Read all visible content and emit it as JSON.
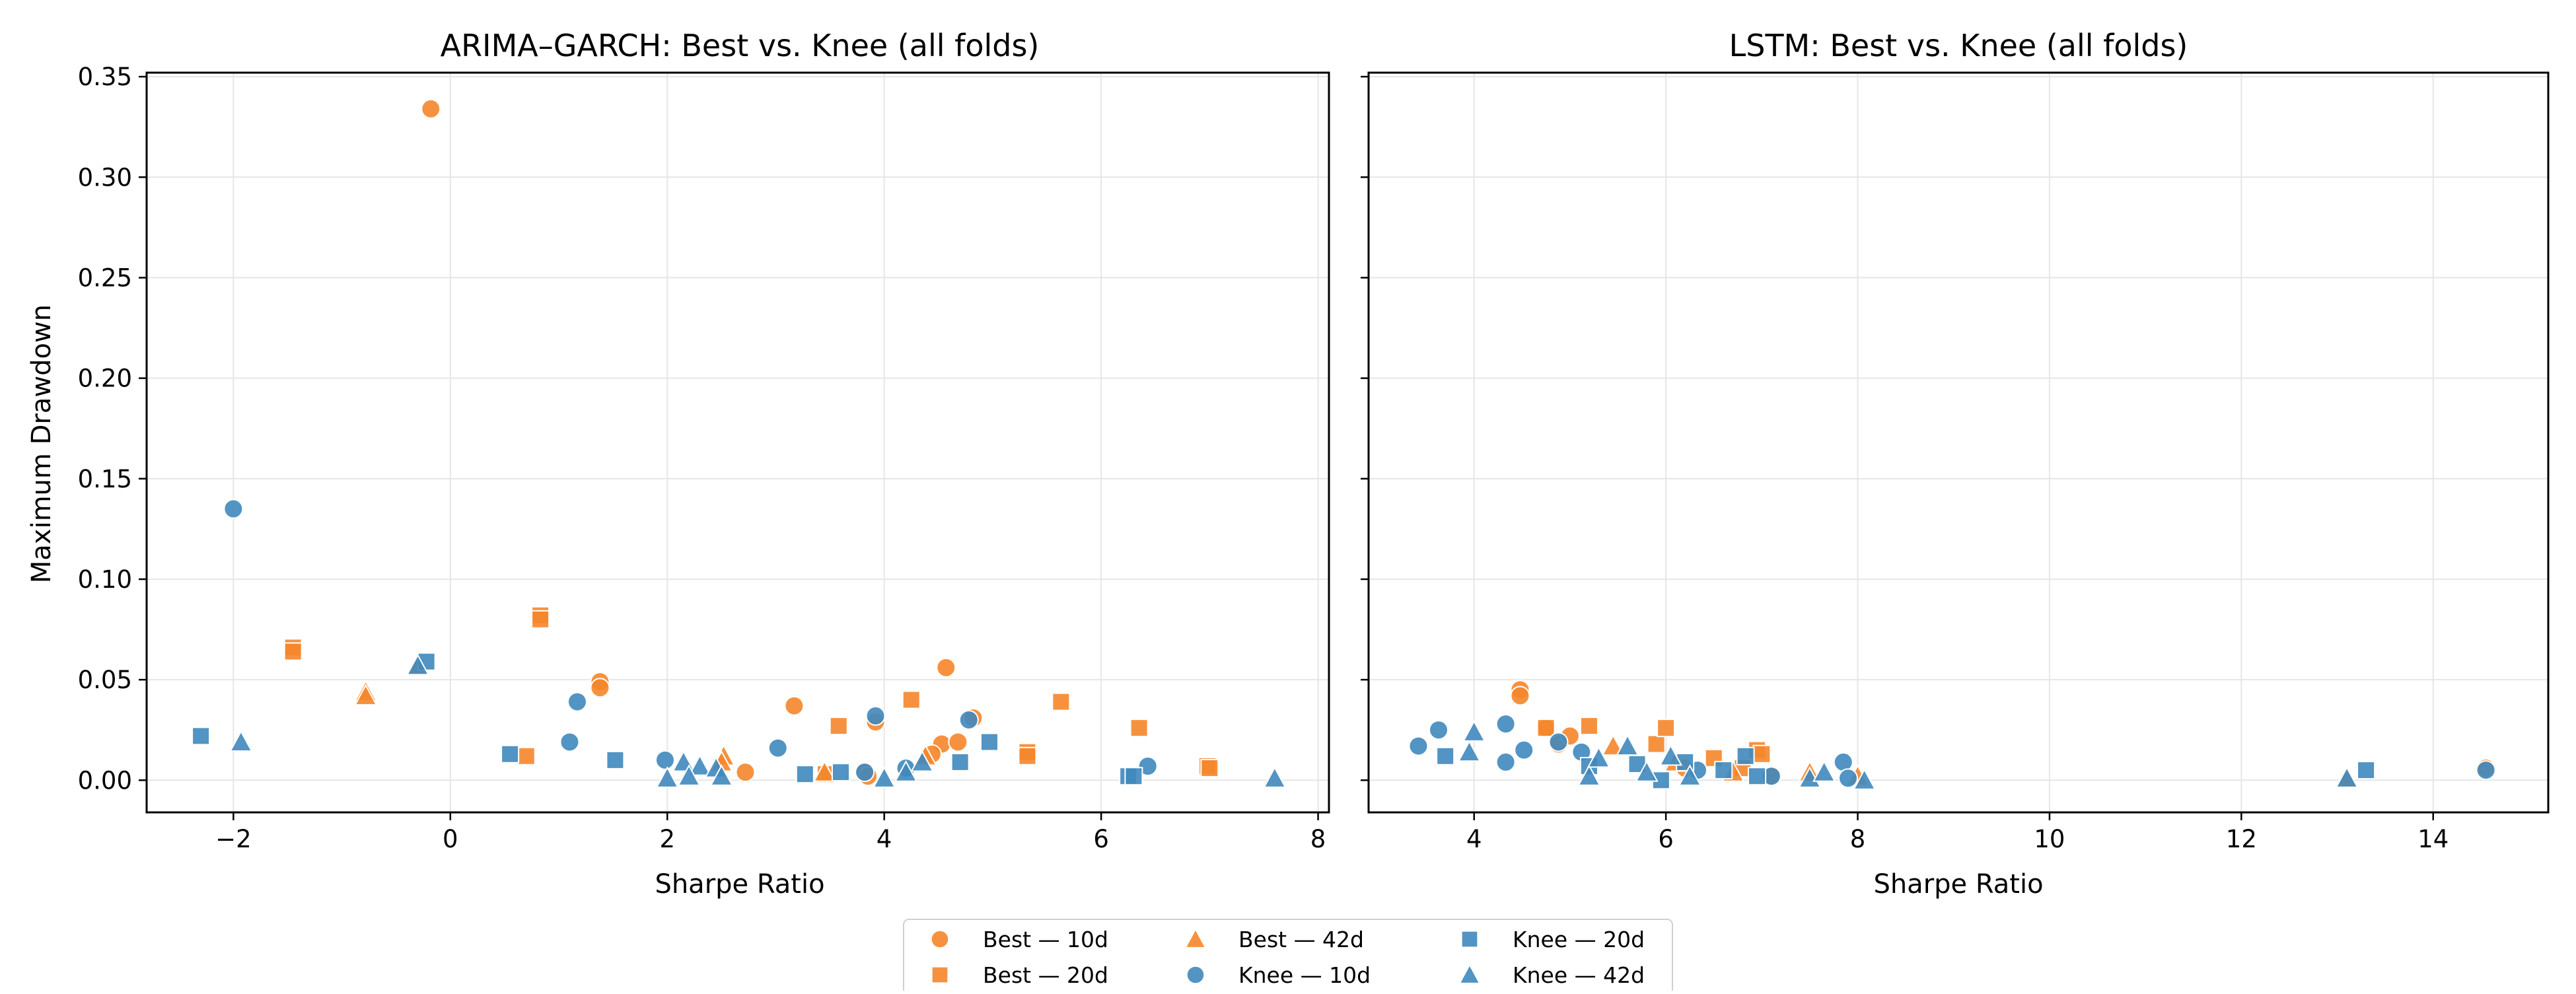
{
  "colors": {
    "best": "#f5862a",
    "knee": "#3f88bd",
    "overlap": "#516e80",
    "grid": "#e6e6e6",
    "axis": "#000000"
  },
  "marker_shapes": {
    "10d": "circle",
    "20d": "square",
    "42d": "triangle"
  },
  "shared": {
    "ylabel": "Maximum Drawdown"
  },
  "legend": {
    "placement": "bottom-center",
    "entries": [
      {
        "label": "Best — 10d",
        "group": "best",
        "marker": "circle"
      },
      {
        "label": "Best — 20d",
        "group": "best",
        "marker": "square"
      },
      {
        "label": "Best — 42d",
        "group": "best",
        "marker": "triangle"
      },
      {
        "label": "Knee — 10d",
        "group": "knee",
        "marker": "circle"
      },
      {
        "label": "Knee — 20d",
        "group": "knee",
        "marker": "square"
      },
      {
        "label": "Knee — 42d",
        "group": "knee",
        "marker": "triangle"
      }
    ]
  },
  "chart_data": [
    {
      "type": "scatter",
      "title": "ARIMA–GARCH: Best vs. Knee (all folds)",
      "xlabel": "Sharpe Ratio",
      "ylabel": "Maximum Drawdown",
      "xlim": [
        -2.8,
        8.1
      ],
      "ylim": [
        -0.016,
        0.352
      ],
      "xticks": [
        -2,
        0,
        2,
        4,
        6,
        8
      ],
      "yticks": [
        0.0,
        0.05,
        0.1,
        0.15,
        0.2,
        0.25,
        0.3,
        0.35
      ],
      "ytick_labels": [
        "0.00",
        "0.05",
        "0.10",
        "0.15",
        "0.20",
        "0.25",
        "0.30",
        "0.35"
      ],
      "xtick_labels": [
        "−2",
        "0",
        "2",
        "4",
        "6",
        "8"
      ],
      "grid": true,
      "series": [
        {
          "name": "Best — 10d",
          "group": "best",
          "marker": "circle",
          "points": [
            [
              -0.18,
              0.334
            ],
            [
              1.38,
              0.049
            ],
            [
              1.38,
              0.046
            ],
            [
              3.17,
              0.037
            ],
            [
              2.72,
              0.004
            ],
            [
              3.92,
              0.029
            ],
            [
              3.82,
              0.004
            ],
            [
              4.57,
              0.056
            ],
            [
              4.53,
              0.018
            ],
            [
              4.68,
              0.019
            ],
            [
              4.82,
              0.031
            ],
            [
              4.44,
              0.013
            ],
            [
              3.85,
              0.002
            ]
          ]
        },
        {
          "name": "Best — 20d",
          "group": "best",
          "marker": "square",
          "points": [
            [
              -1.45,
              0.066
            ],
            [
              -1.45,
              0.064
            ],
            [
              0.83,
              0.082
            ],
            [
              0.83,
              0.08
            ],
            [
              0.7,
              0.012
            ],
            [
              3.58,
              0.027
            ],
            [
              4.25,
              0.04
            ],
            [
              5.32,
              0.014
            ],
            [
              5.32,
              0.012
            ],
            [
              5.63,
              0.039
            ],
            [
              6.35,
              0.026
            ],
            [
              6.98,
              0.007
            ],
            [
              7.0,
              0.006
            ],
            [
              3.46,
              0.003
            ]
          ]
        },
        {
          "name": "Best — 42d",
          "group": "best",
          "marker": "triangle",
          "points": [
            [
              -0.78,
              0.044
            ],
            [
              -0.78,
              0.042
            ],
            [
              -0.3,
              0.057
            ],
            [
              2.52,
              0.012
            ],
            [
              2.5,
              0.009
            ],
            [
              4.38,
              0.012
            ],
            [
              3.45,
              0.004
            ]
          ]
        },
        {
          "name": "Knee — 10d",
          "group": "knee",
          "marker": "circle",
          "points": [
            [
              -2.0,
              0.135
            ],
            [
              1.1,
              0.019
            ],
            [
              1.17,
              0.039
            ],
            [
              1.98,
              0.01
            ],
            [
              3.02,
              0.016
            ],
            [
              3.92,
              0.032
            ],
            [
              3.82,
              0.004
            ],
            [
              4.2,
              0.006
            ],
            [
              4.78,
              0.03
            ],
            [
              6.43,
              0.007
            ]
          ]
        },
        {
          "name": "Knee — 20d",
          "group": "knee",
          "marker": "square",
          "points": [
            [
              -2.3,
              0.022
            ],
            [
              -0.22,
              0.059
            ],
            [
              0.55,
              0.013
            ],
            [
              1.52,
              0.01
            ],
            [
              3.27,
              0.003
            ],
            [
              3.6,
              0.004
            ],
            [
              4.7,
              0.009
            ],
            [
              4.97,
              0.019
            ],
            [
              6.25,
              0.002
            ],
            [
              6.3,
              0.002
            ]
          ]
        },
        {
          "name": "Knee — 42d",
          "group": "knee",
          "marker": "triangle",
          "points": [
            [
              -1.93,
              0.019
            ],
            [
              -0.3,
              0.057
            ],
            [
              2.0,
              0.001
            ],
            [
              2.15,
              0.009
            ],
            [
              2.3,
              0.007
            ],
            [
              2.2,
              0.002
            ],
            [
              2.45,
              0.006
            ],
            [
              2.5,
              0.002
            ],
            [
              4.0,
              0.001
            ],
            [
              4.2,
              0.004
            ],
            [
              4.35,
              0.009
            ],
            [
              7.6,
              0.001
            ]
          ]
        }
      ]
    },
    {
      "type": "scatter",
      "title": "LSTM: Best vs. Knee (all folds)",
      "xlabel": "Sharpe Ratio",
      "ylabel": "",
      "xlim": [
        2.9,
        15.2
      ],
      "ylim": [
        -0.016,
        0.352
      ],
      "xticks": [
        4,
        6,
        8,
        10,
        12,
        14
      ],
      "yticks": [
        0.0,
        0.05,
        0.1,
        0.15,
        0.2,
        0.25,
        0.3,
        0.35
      ],
      "xtick_labels": [
        "4",
        "6",
        "8",
        "10",
        "12",
        "14"
      ],
      "grid": true,
      "series": [
        {
          "name": "Best — 10d",
          "group": "best",
          "marker": "circle",
          "points": [
            [
              4.48,
              0.045
            ],
            [
              4.48,
              0.042
            ],
            [
              4.75,
              0.026
            ],
            [
              4.88,
              0.018
            ],
            [
              5.0,
              0.022
            ],
            [
              6.2,
              0.006
            ],
            [
              7.1,
              0.002
            ],
            [
              14.55,
              0.006
            ]
          ]
        },
        {
          "name": "Best — 20d",
          "group": "best",
          "marker": "square",
          "points": [
            [
              4.75,
              0.026
            ],
            [
              5.2,
              0.027
            ],
            [
              5.9,
              0.018
            ],
            [
              6.0,
              0.026
            ],
            [
              6.5,
              0.011
            ],
            [
              6.95,
              0.015
            ],
            [
              7.0,
              0.013
            ],
            [
              6.8,
              0.006
            ]
          ]
        },
        {
          "name": "Best — 42d",
          "group": "best",
          "marker": "triangle",
          "points": [
            [
              5.45,
              0.017
            ],
            [
              6.1,
              0.009
            ],
            [
              6.7,
              0.004
            ],
            [
              7.5,
              0.004
            ],
            [
              8.0,
              0.002
            ],
            [
              13.1,
              0.001
            ]
          ]
        },
        {
          "name": "Knee — 10d",
          "group": "knee",
          "marker": "circle",
          "points": [
            [
              3.42,
              0.017
            ],
            [
              3.63,
              0.025
            ],
            [
              4.33,
              0.028
            ],
            [
              4.33,
              0.009
            ],
            [
              4.52,
              0.015
            ],
            [
              4.88,
              0.019
            ],
            [
              5.12,
              0.014
            ],
            [
              6.33,
              0.005
            ],
            [
              7.1,
              0.002
            ],
            [
              7.85,
              0.009
            ],
            [
              7.9,
              0.001
            ],
            [
              14.55,
              0.005
            ]
          ]
        },
        {
          "name": "Knee — 20d",
          "group": "knee",
          "marker": "square",
          "points": [
            [
              3.7,
              0.012
            ],
            [
              5.2,
              0.007
            ],
            [
              5.7,
              0.008
            ],
            [
              5.95,
              0.0
            ],
            [
              6.2,
              0.009
            ],
            [
              6.6,
              0.005
            ],
            [
              6.83,
              0.012
            ],
            [
              6.95,
              0.002
            ],
            [
              13.3,
              0.005
            ]
          ]
        },
        {
          "name": "Knee — 42d",
          "group": "knee",
          "marker": "triangle",
          "points": [
            [
              3.95,
              0.014
            ],
            [
              4.0,
              0.024
            ],
            [
              5.2,
              0.002
            ],
            [
              5.3,
              0.011
            ],
            [
              5.6,
              0.017
            ],
            [
              5.8,
              0.004
            ],
            [
              6.05,
              0.012
            ],
            [
              6.25,
              0.002
            ],
            [
              7.5,
              0.001
            ],
            [
              7.65,
              0.004
            ],
            [
              8.07,
              0.0
            ],
            [
              13.1,
              0.001
            ]
          ]
        }
      ]
    }
  ]
}
